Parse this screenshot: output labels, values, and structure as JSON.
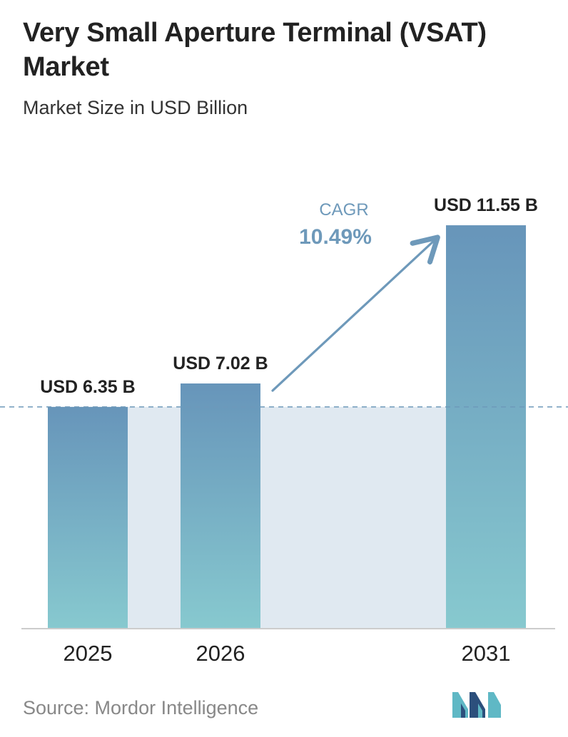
{
  "title": "Very Small Aperture Terminal (VSAT) Market",
  "subtitle": "Market Size in USD Billion",
  "source": "Source:  Mordor Intelligence",
  "logo_icon": "mordor-intelligence-logo",
  "colors": {
    "bar_top": "#6795ba",
    "bar_bottom": "#87c9cf",
    "band": "#e0e9f1",
    "arrow": "#6e99ba",
    "cagr_text": "#6e99ba",
    "title_text": "#222222",
    "logo_dark": "#2c4f7c",
    "logo_light": "#5fb8c5"
  },
  "chart_data": {
    "type": "bar",
    "categories": [
      "2025",
      "2026",
      "2031"
    ],
    "values": [
      6.35,
      7.02,
      11.55
    ],
    "value_labels": [
      "USD 6.35 B",
      "USD 7.02 B",
      "USD 11.55 B"
    ],
    "cagr_label": "CAGR",
    "cagr_value": "10.49%",
    "reference_line_value": 6.35,
    "grid": false,
    "legend": "none"
  }
}
